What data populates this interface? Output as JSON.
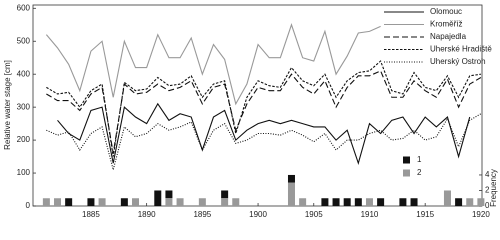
{
  "chart_data": {
    "type": "line",
    "y_label": "Relative water stage [cm]",
    "y2_label": "Frequency",
    "x": [
      1881,
      1882,
      1883,
      1884,
      1885,
      1886,
      1887,
      1888,
      1889,
      1890,
      1891,
      1892,
      1893,
      1894,
      1895,
      1896,
      1897,
      1898,
      1899,
      1900,
      1901,
      1902,
      1903,
      1904,
      1905,
      1906,
      1907,
      1908,
      1909,
      1910,
      1911,
      1912,
      1913,
      1914,
      1915,
      1916,
      1917,
      1918,
      1919,
      1920
    ],
    "xlim": [
      1879.8,
      1920.1
    ],
    "xticks": [
      1885,
      1890,
      1895,
      1900,
      1905,
      1910,
      1915,
      1920
    ],
    "ylim": [
      0,
      610
    ],
    "yticks": [
      0,
      100,
      200,
      300,
      400,
      500,
      600
    ],
    "y2lim": [
      0,
      25.9
    ],
    "y2ticks": [
      0,
      2,
      4
    ],
    "legend": "upper right",
    "series": [
      {
        "name": "Olomouc",
        "type": "line",
        "color": "#111111",
        "dash": "none",
        "values": [
          null,
          260,
          220,
          200,
          290,
          300,
          130,
          300,
          270,
          250,
          310,
          260,
          280,
          270,
          170,
          270,
          290,
          200,
          230,
          250,
          260,
          250,
          260,
          250,
          240,
          240,
          200,
          230,
          130,
          250,
          220,
          260,
          270,
          220,
          270,
          240,
          270,
          150,
          270,
          null
        ]
      },
      {
        "name": "Kroměříž",
        "type": "line",
        "color": "#999999",
        "dash": "none",
        "values": [
          520,
          480,
          430,
          350,
          470,
          500,
          330,
          500,
          420,
          420,
          520,
          450,
          450,
          510,
          400,
          490,
          445,
          310,
          370,
          490,
          450,
          450,
          550,
          450,
          440,
          530,
          400,
          455,
          525,
          530,
          545,
          null,
          null,
          null,
          null,
          null,
          null,
          null,
          null,
          null
        ]
      },
      {
        "name": "Napajedla",
        "type": "line",
        "color": "#111111",
        "dash": "6 3",
        "values": [
          340,
          320,
          320,
          290,
          340,
          360,
          160,
          370,
          340,
          345,
          370,
          350,
          360,
          380,
          310,
          360,
          370,
          230,
          310,
          360,
          350,
          350,
          400,
          360,
          340,
          380,
          300,
          360,
          395,
          395,
          410,
          330,
          330,
          380,
          350,
          330,
          385,
          300,
          370,
          390
        ]
      },
      {
        "name": "Uherské Hradiště",
        "type": "line",
        "color": "#111111",
        "dash": "2.5 1.5",
        "values": [
          360,
          340,
          345,
          300,
          350,
          370,
          150,
          375,
          350,
          355,
          390,
          365,
          370,
          395,
          330,
          370,
          380,
          220,
          330,
          380,
          365,
          360,
          420,
          380,
          365,
          400,
          330,
          380,
          405,
          410,
          440,
          350,
          340,
          405,
          360,
          350,
          395,
          330,
          395,
          400
        ]
      },
      {
        "name": "Uherský Ostroh",
        "type": "line",
        "color": "#111111",
        "dash": "1 1.5",
        "values": [
          230,
          215,
          225,
          170,
          220,
          240,
          110,
          240,
          210,
          220,
          250,
          230,
          240,
          255,
          170,
          230,
          250,
          190,
          200,
          220,
          220,
          215,
          230,
          215,
          195,
          220,
          170,
          200,
          200,
          220,
          230,
          200,
          205,
          230,
          200,
          210,
          265,
          180,
          260,
          280
        ]
      },
      {
        "name": "1",
        "type": "bar",
        "axis": "y2",
        "color": "#111111",
        "values": [
          0,
          0,
          1,
          0,
          1,
          0,
          0,
          1,
          0,
          0,
          2,
          1,
          0,
          0,
          0,
          0,
          1,
          0,
          0,
          0,
          0,
          0,
          1,
          0,
          0,
          1,
          1,
          1,
          1,
          0,
          1,
          0,
          1,
          1,
          0,
          0,
          0,
          1,
          0,
          0
        ]
      },
      {
        "name": "2",
        "type": "bar",
        "axis": "y2",
        "color": "#999999",
        "values": [
          1,
          1,
          0,
          0,
          0,
          1,
          0,
          0,
          1,
          0,
          0,
          1,
          1,
          0,
          1,
          0,
          1,
          1,
          0,
          0,
          0,
          0,
          3,
          1,
          0,
          0,
          0,
          0,
          0,
          1,
          0,
          0,
          0,
          0,
          0,
          0,
          2,
          0,
          1,
          1
        ]
      }
    ]
  }
}
